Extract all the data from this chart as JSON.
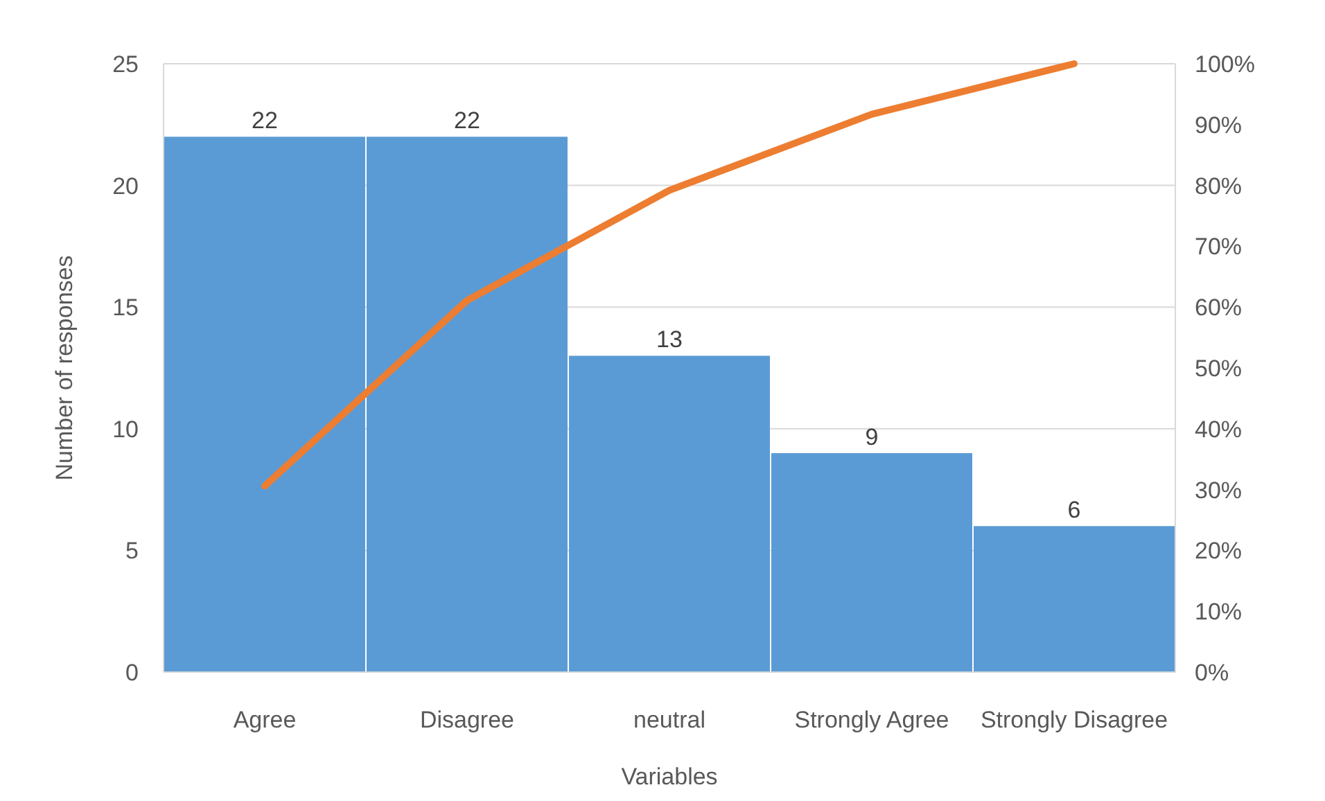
{
  "chart_data": {
    "type": "bar",
    "xlabel": "Variables",
    "ylabel": "Number of responses",
    "categories": [
      "Agree",
      "Disagree",
      "neutral",
      "Strongly Agree",
      "Strongly Disagree"
    ],
    "series": [
      {
        "type": "bar",
        "color": "#5b9bd5",
        "values": [
          22,
          22,
          13,
          9,
          6
        ],
        "value_labels": [
          "22",
          "22",
          "13",
          "9",
          "6"
        ]
      },
      {
        "type": "line",
        "axis": "y2",
        "color": "#ed7d31",
        "values": [
          30.6,
          61.1,
          79.2,
          91.7,
          100
        ],
        "marker": "none",
        "line_style": "solid"
      }
    ],
    "ylim": [
      0,
      25
    ],
    "yticks": [
      0,
      5,
      10,
      15,
      20,
      25
    ],
    "y2lim": [
      0,
      100
    ],
    "y2ticks": [
      {
        "value": 0,
        "label": "0%"
      },
      {
        "value": 10,
        "label": "10%"
      },
      {
        "value": 20,
        "label": "20%"
      },
      {
        "value": 30,
        "label": "30%"
      },
      {
        "value": 40,
        "label": "40%"
      },
      {
        "value": 50,
        "label": "50%"
      },
      {
        "value": 60,
        "label": "60%"
      },
      {
        "value": 70,
        "label": "70%"
      },
      {
        "value": 80,
        "label": "80%"
      },
      {
        "value": 90,
        "label": "90%"
      },
      {
        "value": 100,
        "label": "100%"
      }
    ],
    "grid": "y"
  }
}
